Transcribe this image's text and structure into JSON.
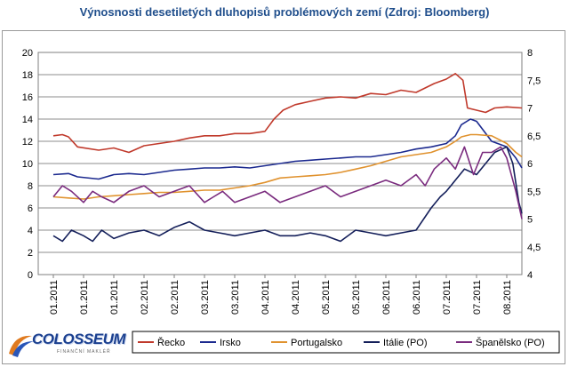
{
  "chart_data": {
    "type": "line",
    "title": "Výnosnosti desetiletých dluhopisů problémových zemí (Zdroj: Bloomberg)",
    "xlabel": "",
    "ylabel": "",
    "x_ticks": [
      "01.2011",
      "01.2011",
      "01.2011",
      "02.2011",
      "02.2011",
      "03.2011",
      "03.2011",
      "04.2011",
      "04.2011",
      "05.2011",
      "05.2011",
      "06.2011",
      "06.2011",
      "07.2011",
      "07.2011",
      "08.2011"
    ],
    "ylim_left": [
      0,
      20
    ],
    "yticks_left": [
      0,
      2,
      4,
      6,
      8,
      10,
      12,
      14,
      16,
      18,
      20
    ],
    "ylim_right": [
      4,
      8
    ],
    "yticks_right": [
      "4",
      "4,5",
      "5",
      "5,5",
      "6",
      "6,5",
      "7",
      "7,5",
      "8"
    ],
    "grid": true,
    "legend_position": "bottom",
    "series": [
      {
        "name": "Řecko",
        "axis": "left",
        "color": "#c0392b",
        "x": [
          0,
          0.3,
          0.5,
          0.8,
          1.5,
          2.0,
          2.5,
          3.0,
          3.5,
          4.0,
          4.5,
          5.0,
          5.5,
          6.0,
          6.5,
          7.0,
          7.3,
          7.6,
          8.0,
          8.5,
          9.0,
          9.5,
          10.0,
          10.5,
          11.0,
          11.5,
          12.0,
          12.3,
          12.6,
          13.0,
          13.3,
          13.55,
          13.7,
          14.0,
          14.3,
          14.6,
          15.0,
          15.5
        ],
        "y": [
          12.5,
          12.6,
          12.4,
          11.5,
          11.2,
          11.4,
          11.0,
          11.6,
          11.8,
          12.0,
          12.3,
          12.5,
          12.5,
          12.7,
          12.7,
          12.9,
          14.0,
          14.8,
          15.3,
          15.6,
          15.9,
          16.0,
          15.9,
          16.3,
          16.2,
          16.6,
          16.4,
          16.8,
          17.2,
          17.6,
          18.1,
          17.5,
          15.0,
          14.8,
          14.6,
          15.0,
          15.1,
          15.0
        ]
      },
      {
        "name": "Irsko",
        "axis": "left",
        "color": "#1c2a8f",
        "x": [
          0,
          0.5,
          0.8,
          1.5,
          2.0,
          2.5,
          3.0,
          3.5,
          4.0,
          4.5,
          5.0,
          5.5,
          6.0,
          6.5,
          7.0,
          7.5,
          8.0,
          8.5,
          9.0,
          9.5,
          10.0,
          10.5,
          11.0,
          11.5,
          12.0,
          12.5,
          13.0,
          13.3,
          13.5,
          13.8,
          14.0,
          14.5,
          15.0,
          15.3,
          15.5
        ],
        "y": [
          9.0,
          9.1,
          8.8,
          8.6,
          9.0,
          9.1,
          9.0,
          9.2,
          9.4,
          9.5,
          9.6,
          9.6,
          9.7,
          9.6,
          9.8,
          10.0,
          10.2,
          10.3,
          10.4,
          10.5,
          10.6,
          10.6,
          10.8,
          11.0,
          11.3,
          11.5,
          11.8,
          12.5,
          13.5,
          14.0,
          13.8,
          12.0,
          11.5,
          10.5,
          9.6
        ]
      },
      {
        "name": "Portugalsko",
        "axis": "left",
        "color": "#e0922e",
        "x": [
          0,
          0.5,
          1.0,
          1.5,
          2.0,
          2.5,
          3.0,
          3.5,
          4.0,
          4.5,
          5.0,
          5.5,
          6.0,
          6.5,
          7.0,
          7.5,
          8.0,
          8.5,
          9.0,
          9.5,
          10.0,
          10.5,
          11.0,
          11.5,
          12.0,
          12.5,
          13.0,
          13.3,
          13.5,
          13.8,
          14.0,
          14.5,
          15.0,
          15.3,
          15.5
        ],
        "y": [
          7.0,
          6.9,
          6.8,
          7.0,
          7.1,
          7.2,
          7.3,
          7.4,
          7.4,
          7.5,
          7.6,
          7.6,
          7.8,
          8.0,
          8.3,
          8.7,
          8.8,
          8.9,
          9.0,
          9.2,
          9.5,
          9.8,
          10.2,
          10.6,
          10.8,
          11.0,
          11.5,
          12.0,
          12.4,
          12.6,
          12.6,
          12.5,
          11.8,
          11.0,
          10.6
        ]
      },
      {
        "name": "Itálie (PO)",
        "axis": "right",
        "color": "#141f5a",
        "x": [
          0,
          0.3,
          0.6,
          1.0,
          1.3,
          1.6,
          2.0,
          2.5,
          3.0,
          3.5,
          4.0,
          4.5,
          5.0,
          5.5,
          6.0,
          6.5,
          7.0,
          7.5,
          8.0,
          8.5,
          9.0,
          9.5,
          10.0,
          10.5,
          11.0,
          11.5,
          12.0,
          12.5,
          12.8,
          13.0,
          13.3,
          13.6,
          14.0,
          14.3,
          14.6,
          15.0,
          15.2,
          15.4,
          15.5
        ],
        "y": [
          4.7,
          4.6,
          4.8,
          4.7,
          4.6,
          4.8,
          4.65,
          4.75,
          4.8,
          4.7,
          4.85,
          4.95,
          4.8,
          4.75,
          4.7,
          4.75,
          4.8,
          4.7,
          4.7,
          4.75,
          4.7,
          4.6,
          4.8,
          4.75,
          4.7,
          4.75,
          4.8,
          5.2,
          5.4,
          5.5,
          5.7,
          5.9,
          5.8,
          6.0,
          6.2,
          6.3,
          6.0,
          5.3,
          5.1
        ]
      },
      {
        "name": "Španělsko (PO)",
        "axis": "right",
        "color": "#7a2b7e",
        "x": [
          0,
          0.3,
          0.6,
          1.0,
          1.3,
          1.6,
          2.0,
          2.5,
          3.0,
          3.5,
          4.0,
          4.5,
          5.0,
          5.3,
          5.6,
          6.0,
          6.5,
          7.0,
          7.5,
          8.0,
          8.5,
          9.0,
          9.5,
          10.0,
          10.5,
          11.0,
          11.5,
          12.0,
          12.3,
          12.6,
          13.0,
          13.3,
          13.6,
          13.9,
          14.2,
          14.5,
          14.8,
          15.0,
          15.3,
          15.5
        ],
        "y": [
          5.4,
          5.6,
          5.5,
          5.3,
          5.5,
          5.4,
          5.3,
          5.5,
          5.6,
          5.4,
          5.5,
          5.6,
          5.3,
          5.4,
          5.5,
          5.3,
          5.4,
          5.5,
          5.3,
          5.4,
          5.5,
          5.6,
          5.4,
          5.5,
          5.6,
          5.7,
          5.6,
          5.8,
          5.6,
          5.9,
          6.1,
          5.9,
          6.3,
          5.8,
          6.2,
          6.2,
          6.3,
          6.1,
          5.5,
          5.0
        ]
      }
    ]
  },
  "logo": {
    "name": "COLOSSEUM",
    "tagline": "FINANČNÍ MAKLÉŘ"
  }
}
